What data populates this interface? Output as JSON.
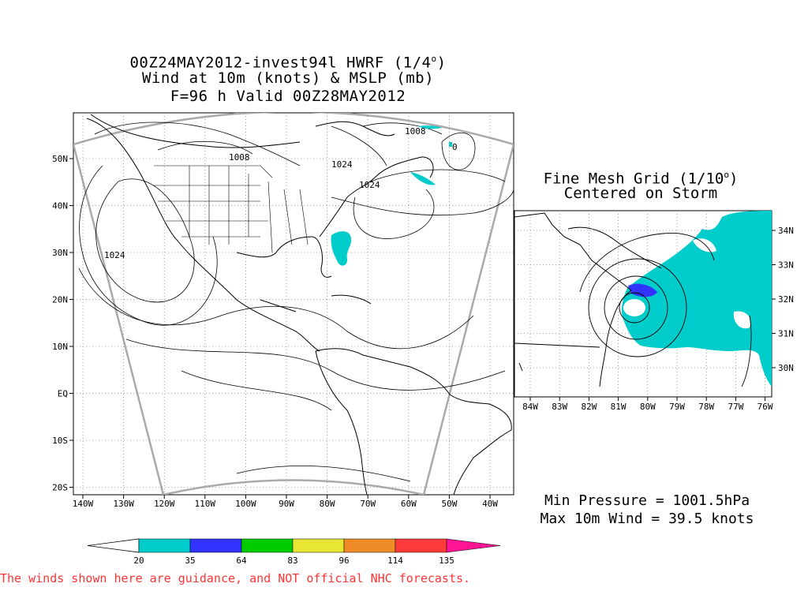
{
  "title": {
    "line1": "00Z24MAY2012-invest94l HWRF (1/4",
    "line1_sup": "o",
    "line1_end": ")",
    "line2": "Wind at 10m (knots) & MSLP (mb)",
    "line3": "F=96 h Valid 00Z28MAY2012"
  },
  "inset_title": {
    "line1": "Fine Mesh Grid (1/10",
    "line1_sup": "o",
    "line1_end": ")",
    "line2": "Centered on Storm"
  },
  "main_map": {
    "lon_labels": [
      "140W",
      "130W",
      "120W",
      "110W",
      "100W",
      "90W",
      "80W",
      "70W",
      "60W",
      "50W",
      "40W"
    ],
    "lat_labels": [
      "50N",
      "40N",
      "30N",
      "20N",
      "10N",
      "EQ",
      "10S",
      "20S"
    ],
    "contour_labels": [
      "1008",
      "1008",
      "1024",
      "1024",
      "1024"
    ]
  },
  "inset_map": {
    "lon_labels": [
      "84W",
      "83W",
      "82W",
      "81W",
      "80W",
      "79W",
      "78W",
      "77W",
      "76W"
    ],
    "lat_labels": [
      "34N",
      "33N",
      "32N",
      "31N",
      "30N"
    ]
  },
  "stats": {
    "min_pressure": "Min Pressure = 1001.5hPa",
    "max_wind": "Max 10m Wind = 39.5 knots"
  },
  "colorbar": {
    "ticks": [
      "20",
      "35",
      "64",
      "83",
      "96",
      "114",
      "135"
    ],
    "colors": [
      "#ffffff",
      "#00cccc",
      "#3333ff",
      "#00cc00",
      "#e6e633",
      "#f08c28",
      "#ff3a3a",
      "#ff1493"
    ]
  },
  "disclaimer": "The winds shown here are guidance, and NOT official NHC forecasts."
}
